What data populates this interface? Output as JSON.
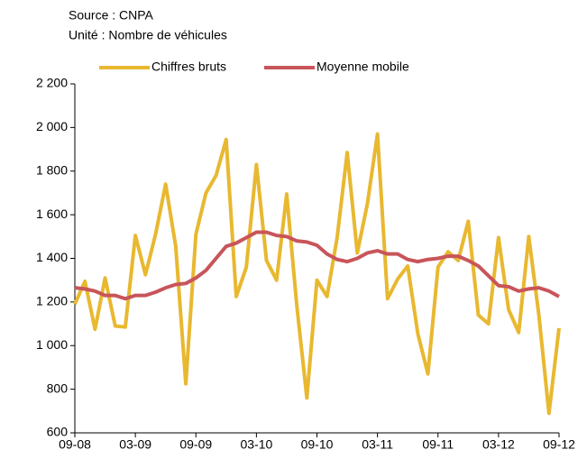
{
  "chart_data": {
    "type": "line",
    "source": "Source : CNPA",
    "unit": "Unité : Nombre de véhicules",
    "categories": [
      "09-08",
      null,
      null,
      null,
      null,
      null,
      "03-09",
      null,
      null,
      null,
      null,
      null,
      "09-09",
      null,
      null,
      null,
      null,
      null,
      "03-10",
      null,
      null,
      null,
      null,
      null,
      "09-10",
      null,
      null,
      null,
      null,
      null,
      "03-11",
      null,
      null,
      null,
      null,
      null,
      "09-11",
      null,
      null,
      null,
      null,
      null,
      "03-12",
      null,
      null,
      null,
      null,
      null,
      "09-12"
    ],
    "series": [
      {
        "name": "Chiffres bruts",
        "color": "#e8b830",
        "values": [
          1190,
          1295,
          1075,
          1310,
          1090,
          1085,
          1505,
          1325,
          1510,
          1740,
          1455,
          825,
          1510,
          1700,
          1780,
          1945,
          1225,
          1360,
          1830,
          1390,
          1300,
          1695,
          1185,
          760,
          1300,
          1225,
          1495,
          1885,
          1425,
          1650,
          1970,
          1215,
          1305,
          1365,
          1055,
          870,
          1360,
          1430,
          1390,
          1570,
          1140,
          1100,
          1495,
          1165,
          1060,
          1500,
          1140,
          690,
          1080
        ]
      },
      {
        "name": "Moyenne mobile",
        "color": "#c8555a",
        "values": [
          1265,
          1260,
          1250,
          1230,
          1230,
          1215,
          1230,
          1230,
          1245,
          1265,
          1280,
          1285,
          1310,
          1345,
          1400,
          1455,
          1470,
          1495,
          1520,
          1520,
          1505,
          1500,
          1480,
          1475,
          1460,
          1420,
          1395,
          1385,
          1400,
          1425,
          1435,
          1420,
          1420,
          1395,
          1385,
          1395,
          1400,
          1410,
          1410,
          1390,
          1365,
          1320,
          1275,
          1270,
          1250,
          1260,
          1265,
          1250,
          1225
        ]
      }
    ],
    "ylim": [
      600,
      2200
    ],
    "yticks": [
      600,
      800,
      {
        "value": 1000,
        "label": "1 000"
      },
      {
        "value": 1200,
        "label": "1 200"
      },
      {
        "value": 1400,
        "label": "1 400"
      },
      {
        "value": 1600,
        "label": "1 600"
      },
      {
        "value": 1800,
        "label": "1 800"
      },
      {
        "value": 2000,
        "label": "2 000"
      },
      {
        "value": 2200,
        "label": "2 200"
      }
    ],
    "legend": "top"
  }
}
